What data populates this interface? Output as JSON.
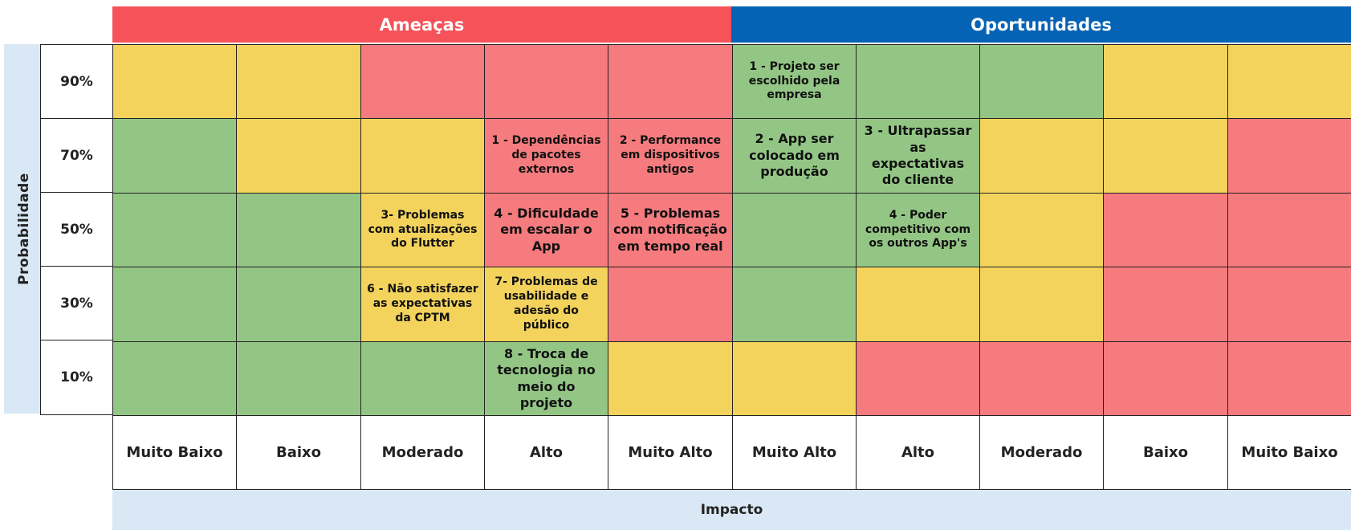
{
  "headers": {
    "threats": "Ameaças",
    "opportunities": "Oportunidades"
  },
  "colors": {
    "threats_header": "#f5525a",
    "opportunities_header": "#0563b5",
    "green": "#93c685",
    "yellow": "#f3d35c",
    "red": "#f67b7e",
    "axis_bg": "#d9e8f4"
  },
  "axis": {
    "probability": "Probabilidade",
    "impact": "Impacto"
  },
  "rows": [
    "90%",
    "70%",
    "50%",
    "30%",
    "10%"
  ],
  "columns": [
    "Muito Baixo",
    "Baixo",
    "Moderado",
    "Alto",
    "Muito Alto",
    "Muito Alto",
    "Alto",
    "Moderado",
    "Baixo",
    "Muito Baixo"
  ],
  "grid": [
    [
      "y",
      "y",
      "r",
      "r",
      "r",
      "g",
      "g",
      "g",
      "y",
      "y"
    ],
    [
      "g",
      "y",
      "y",
      "r",
      "r",
      "g",
      "g",
      "y",
      "y",
      "r"
    ],
    [
      "g",
      "g",
      "y",
      "r",
      "r",
      "g",
      "g",
      "y",
      "r",
      "r"
    ],
    [
      "g",
      "g",
      "y",
      "y",
      "r",
      "g",
      "y",
      "y",
      "r",
      "r"
    ],
    [
      "g",
      "g",
      "g",
      "g",
      "y",
      "y",
      "r",
      "r",
      "r",
      "r"
    ]
  ],
  "risks": {
    "t1": "1 - Dependências de pacotes externos",
    "t2": "2 - Performance em dispositivos antigos",
    "t3": "3- Problemas com atualizações do Flutter",
    "t4": "4 - Dificuldade em escalar o App",
    "t5": "5 - Problemas com notificação em tempo real",
    "t6": "6 - Não satisfazer as expectativas da CPTM",
    "t7": "7- Problemas de usabilidade e adesão do público",
    "t8": "8 - Troca de tecnologia no meio do projeto",
    "o1": "1 - Projeto ser escolhido pela empresa",
    "o2": "2 - App ser colocado em produção",
    "o3": "3 - Ultrapassar as expectativas do cliente",
    "o4": "4 - Poder competitivo com os outros App's"
  }
}
